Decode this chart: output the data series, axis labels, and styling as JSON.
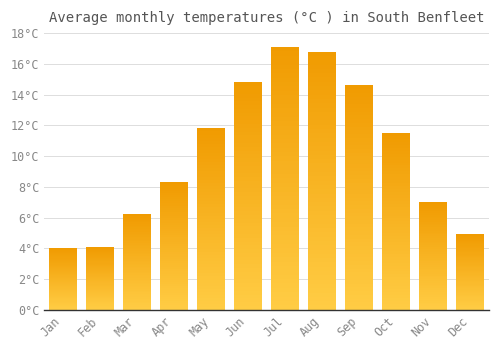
{
  "title": "Average monthly temperatures (°C ) in South Benfleet",
  "months": [
    "Jan",
    "Feb",
    "Mar",
    "Apr",
    "May",
    "Jun",
    "Jul",
    "Aug",
    "Sep",
    "Oct",
    "Nov",
    "Dec"
  ],
  "values": [
    4.0,
    4.1,
    6.2,
    8.3,
    11.8,
    14.8,
    17.1,
    16.8,
    14.6,
    11.5,
    7.0,
    4.9
  ],
  "bar_color": "#F5A800",
  "bar_edge_color": "#E09000",
  "background_color": "#FFFFFF",
  "grid_color": "#DDDDDD",
  "text_color": "#888888",
  "spine_color": "#333333",
  "ylim": [
    0,
    18
  ],
  "yticks": [
    0,
    2,
    4,
    6,
    8,
    10,
    12,
    14,
    16,
    18
  ],
  "ytick_labels": [
    "0°C",
    "2°C",
    "4°C",
    "6°C",
    "8°C",
    "10°C",
    "12°C",
    "14°C",
    "16°C",
    "18°C"
  ],
  "title_fontsize": 10,
  "tick_fontsize": 8.5,
  "bar_width": 0.75
}
